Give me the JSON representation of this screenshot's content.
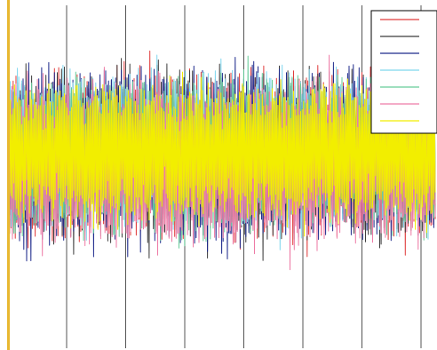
{
  "chart_data": {
    "type": "line",
    "title": "",
    "xlabel": "",
    "ylabel": "",
    "grid": {
      "vertical": true,
      "horizontal": false
    },
    "x_gridlines": 7,
    "legend": {
      "placement": "top-right",
      "show_text": false
    },
    "background": "#ffffff",
    "left_axis_color": "#e8b830",
    "series": [
      {
        "color": "#e03c3c",
        "band_lower": 0.25,
        "band_upper": 0.82,
        "noise": 0.045
      },
      {
        "color": "#3c3c3c",
        "band_lower": 0.24,
        "band_upper": 0.83,
        "noise": 0.05
      },
      {
        "color": "#1e2a8c",
        "band_lower": 0.23,
        "band_upper": 0.84,
        "noise": 0.05
      },
      {
        "color": "#7fd6ee",
        "band_lower": 0.28,
        "band_upper": 0.82,
        "noise": 0.045
      },
      {
        "color": "#66cc99",
        "band_lower": 0.27,
        "band_upper": 0.81,
        "noise": 0.045
      },
      {
        "color": "#ee7ba6",
        "band_lower": 0.22,
        "band_upper": 0.78,
        "noise": 0.05
      },
      {
        "color": "#f2ee00",
        "band_lower": 0.3,
        "band_upper": 0.79,
        "noise": 0.035
      }
    ],
    "samples": 600
  }
}
